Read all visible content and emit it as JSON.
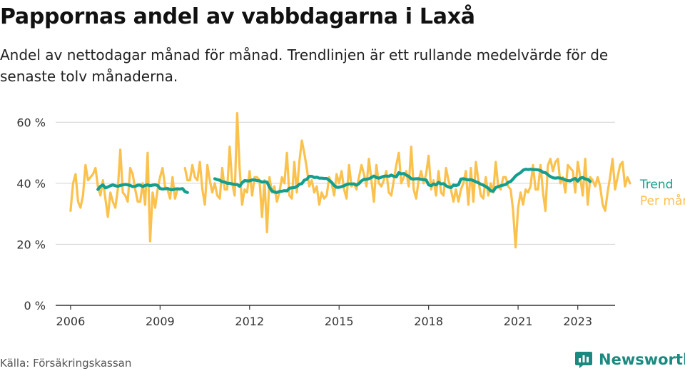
{
  "title": "Pappornas andel av vabbdagarna i Laxå",
  "subtitle": "Andel av nettodagar månad för månad. Trendlinjen är ett rullande medelvärde för de senaste tolv månaderna.",
  "source": "Källa: Försäkringskassan",
  "brand": {
    "name": "Newsworthy",
    "icon": "bar-chart-speech-bubble-logo"
  },
  "colors": {
    "monthly": "#fbc14d",
    "trend": "#139e8d",
    "brand": "#1a8a80",
    "grid": "#d9d9d9",
    "axis": "#333333"
  },
  "chart_data": {
    "type": "line",
    "title": "Pappornas andel av vabbdagarna i Laxå",
    "xlabel": "",
    "ylabel": "",
    "x_ticks": [
      "2006",
      "2009",
      "2012",
      "2015",
      "2018",
      "2021",
      "2023"
    ],
    "x_tick_values": [
      2006,
      2009,
      2012,
      2015,
      2018,
      2021,
      2023
    ],
    "xlim": [
      2005.5,
      2024.25
    ],
    "y_ticks": [
      "0 %",
      "20 %",
      "40 %",
      "60 %"
    ],
    "y_tick_values": [
      0,
      20,
      40,
      60
    ],
    "ylim": [
      0,
      65
    ],
    "grid": true,
    "legend": "end-of-line labels (right)",
    "series": [
      {
        "name": "Per månad",
        "segments": [
          {
            "start": "2006-01",
            "values": [
              31,
              40,
              43,
              34,
              32,
              36,
              46,
              41,
              42,
              43,
              45,
              39,
              36,
              41,
              35,
              29,
              37,
              34,
              32,
              38,
              51,
              37,
              36,
              34,
              45,
              43,
              38,
              34,
              34,
              40,
              33,
              50,
              21,
              37,
              32,
              38,
              42,
              45,
              39,
              38,
              35,
              42,
              35,
              38
            ]
          },
          {
            "start": "2009-11",
            "values": [
              45,
              41,
              41,
              46,
              42,
              41,
              47,
              38,
              33,
              46,
              41,
              37,
              40,
              36,
              35,
              45,
              38,
              38,
              52,
              40,
              36,
              63,
              45,
              33,
              38,
              37,
              44,
              36,
              42,
              42,
              41,
              29,
              41,
              24,
              42,
              37,
              39,
              34,
              37,
              42,
              40,
              50,
              36,
              35,
              47,
              37,
              47,
              54,
              50,
              45,
              39,
              41,
              37,
              39,
              33,
              37,
              35,
              36,
              42,
              40,
              36,
              43,
              40,
              44,
              38,
              35,
              46,
              39,
              40,
              38,
              42,
              46,
              43,
              39,
              48,
              41,
              34,
              46,
              40,
              39,
              41,
              44,
              37,
              36,
              41,
              46,
              50,
              40,
              42,
              44,
              39,
              52,
              38,
              35,
              41,
              44,
              40,
              43,
              49,
              38,
              41,
              36,
              44,
              37,
              36,
              45,
              41,
              38,
              34,
              38,
              34,
              38,
              40,
              44,
              33,
              45,
              34,
              47,
              41,
              36,
              35,
              42,
              36,
              40,
              37,
              47,
              39,
              38,
              42,
              42,
              39,
              38,
              31,
              19,
              32,
              37,
              33,
              38,
              37,
              39,
              46,
              38,
              38,
              46,
              37,
              31,
              46,
              48,
              44,
              47,
              48,
              40,
              42,
              37,
              46,
              45,
              44,
              37,
              47,
              42,
              36,
              48,
              33,
              42,
              41,
              39,
              42,
              39,
              33,
              31,
              37,
              42,
              48,
              38,
              42,
              46,
              47,
              39,
              42,
              40
            ]
          }
        ]
      },
      {
        "name": "Trend",
        "segments": [
          {
            "start": "2006-12",
            "values": [
              38,
              39,
              39.5,
              38.5,
              38.8,
              39.2,
              39.5,
              39.2,
              39,
              39.3,
              39.5,
              39.6,
              39.5,
              39.3,
              38.9,
              39,
              39.4,
              39.4,
              38.9,
              39.3,
              39.5,
              39.2,
              39.4,
              39.5,
              39.3,
              38.3,
              38.1,
              38.2,
              38.3,
              38,
              37.9,
              38.1,
              38.2,
              38.1,
              38.3,
              37.3,
              37
            ]
          },
          {
            "start": "2010-11",
            "values": [
              41.5,
              41.2,
              41,
              40.5,
              40.4,
              40,
              40,
              39.8,
              39.6,
              39.6,
              39,
              40.2,
              40.9,
              40.8,
              40.8,
              41.1,
              41.1,
              40.9,
              40.8,
              40.4,
              40.5,
              40.4,
              38.7,
              37.5,
              37.1,
              37,
              37.3,
              37.4,
              37.6,
              37.5,
              38.4,
              38.5,
              38.6,
              38.9,
              39.7,
              39.9,
              41,
              41.3,
              42.3,
              42.3,
              41.9,
              42,
              41.7,
              41.7,
              41.6,
              41.6,
              41,
              40.3,
              39.3,
              38.7,
              38.7,
              38.9,
              39.2,
              39.6,
              39.8,
              39.8,
              39.8,
              39.4,
              39.9,
              40.8,
              41.3,
              41.3,
              41.5,
              41.9,
              42.4,
              41.9,
              41.7,
              42,
              42.3,
              42.4,
              42.3,
              42.7,
              42.3,
              42.1,
              43.5,
              43.1,
              43.2,
              42.7,
              42.3,
              41.5,
              41.4,
              41.5,
              41.5,
              41.3,
              41.2,
              41.1,
              39.5,
              39.2,
              39.8,
              39.5,
              40.3,
              39.8,
              39.9,
              39.2,
              38.8,
              38.6,
              39.4,
              39.3,
              39.5,
              41.4,
              41.5,
              41.3,
              41.1,
              41.2,
              40.9,
              40.5,
              40.2,
              39.7,
              39.4,
              38.9,
              38.4,
              37.5,
              37.4,
              38.6,
              38.9,
              39.2,
              39.4,
              39.6,
              40.3,
              40.6,
              41.4,
              42.4,
              43,
              43.5,
              44.3,
              44.6,
              44.5,
              44.6,
              44.5,
              44.5,
              44.4,
              44.2,
              43.6,
              43.5,
              42.8,
              42.2,
              41.8,
              41.7,
              41.8,
              41.7,
              41.5,
              41.1,
              40.9,
              40.8,
              41.3,
              41.6,
              40.7,
              41.7,
              41.9,
              41.4,
              41.3,
              40.6
            ]
          }
        ]
      }
    ]
  }
}
